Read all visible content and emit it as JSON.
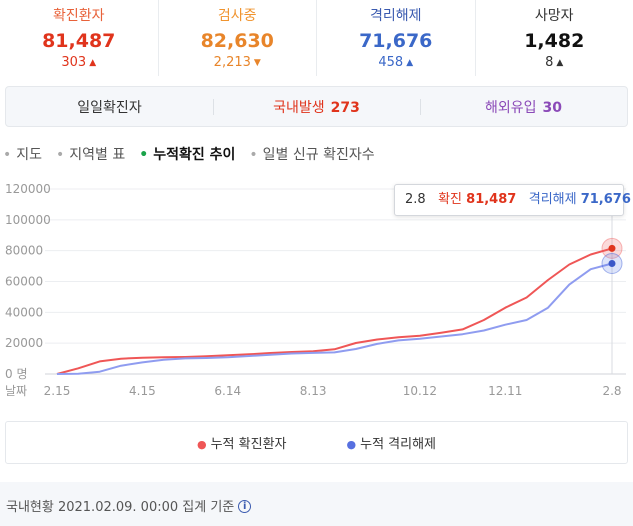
{
  "stats": [
    {
      "label": "확진환자",
      "value": "81,487",
      "change": "303",
      "direction": "up",
      "label_color": "#e8623a",
      "value_color": "#e0341c",
      "change_color": "#e0341c",
      "arrow_color": "#e0341c",
      "arrow": "▲"
    },
    {
      "label": "검사중",
      "value": "82,630",
      "change": "2,213",
      "direction": "down",
      "label_color": "#f0942f",
      "value_color": "#e8852a",
      "change_color": "#e8852a",
      "arrow_color": "#e8852a",
      "arrow": "▼"
    },
    {
      "label": "격리해제",
      "value": "71,676",
      "change": "458",
      "direction": "up",
      "label_color": "#3b5bb0",
      "value_color": "#3b68c8",
      "change_color": "#3b68c8",
      "arrow_color": "#3b68c8",
      "arrow": "▲"
    },
    {
      "label": "사망자",
      "value": "1,482",
      "change": "8",
      "direction": "up",
      "label_color": "#333333",
      "value_color": "#111111",
      "change_color": "#333333",
      "arrow_color": "#333333",
      "arrow": "▲"
    }
  ],
  "daily": {
    "label": "일일확진자",
    "domestic_label": "국내발생",
    "domestic_value": "273",
    "overseas_label": "해외유입",
    "overseas_value": "30",
    "domestic_color": "#e0341c",
    "overseas_color": "#8b4ab8"
  },
  "tabs": [
    {
      "label": "지도",
      "active": false
    },
    {
      "label": "지역별 표",
      "active": false
    },
    {
      "label": "누적확진 추이",
      "active": true
    },
    {
      "label": "일별 신규 확진자수",
      "active": false
    }
  ],
  "tooltip": {
    "date": "2.8",
    "confirmed_label": "확진",
    "confirmed_value": "81,487",
    "released_label": "격리해제",
    "released_value": "71,676"
  },
  "chart_data": {
    "type": "line",
    "x_axis_label": "날짜",
    "x_tick_labels": [
      "2.15",
      "4.15",
      "6.14",
      "8.13",
      "10.12",
      "12.11",
      "2.8"
    ],
    "y_ticks": [
      "120000",
      "100000",
      "80000",
      "60000",
      "40000",
      "20000",
      "0 명"
    ],
    "ylim": [
      0,
      120000
    ],
    "grid": true,
    "x": [
      "2.15",
      "3.1",
      "3.15",
      "4.1",
      "4.15",
      "5.1",
      "5.15",
      "6.1",
      "6.14",
      "7.1",
      "7.15",
      "8.1",
      "8.13",
      "8.20",
      "9.1",
      "9.15",
      "10.1",
      "10.12",
      "11.1",
      "11.15",
      "12.1",
      "12.11",
      "12.20",
      "1.1",
      "1.15",
      "2.1",
      "2.8"
    ],
    "series": [
      {
        "name": "누적 확진환자",
        "color": "#ef5656",
        "values": [
          0,
          3700,
          8200,
          9900,
          10600,
          10800,
          11000,
          11500,
          12100,
          12800,
          13600,
          14300,
          14700,
          16000,
          20100,
          22400,
          23800,
          24800,
          26700,
          28900,
          35000,
          43000,
          49600,
          61000,
          71000,
          77500,
          81487
        ]
      },
      {
        "name": "누적 격리해제",
        "color": "#8f9cf0",
        "values": [
          0,
          100,
          1500,
          5400,
          7500,
          9200,
          10100,
          10400,
          10800,
          11700,
          12500,
          13300,
          13700,
          14000,
          16200,
          19500,
          21800,
          22800,
          24300,
          25800,
          28200,
          32000,
          35000,
          43000,
          58000,
          68000,
          71676
        ]
      }
    ]
  },
  "legend": {
    "items": [
      {
        "label": "누적 확진환자",
        "color": "#ef5656"
      },
      {
        "label": "누적 격리해제",
        "color": "#5770e0"
      }
    ]
  },
  "footer": {
    "text": "국내현황 2021.02.09. 00:00 집계 기준",
    "info_glyph": "i"
  }
}
